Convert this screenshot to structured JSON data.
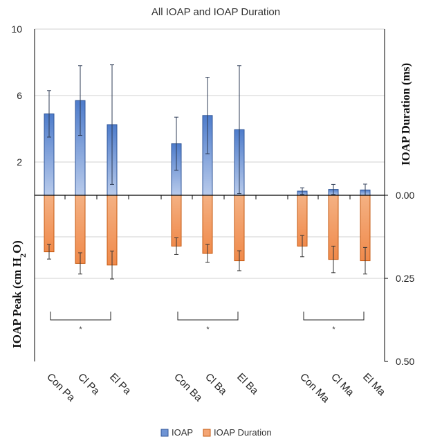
{
  "chart_data": {
    "type": "bar",
    "title": "All IOAP and IOAP Duration",
    "categories": [
      "Con Pa",
      "Cl Pa",
      "El Pa",
      "Con Ba",
      "Cl Ba",
      "El Ba",
      "Con Ma",
      "Cl Ma",
      "El Ma"
    ],
    "left_axis": {
      "label": "IOAP Peak (cm H2O)",
      "label_main": "IOAP Peak (cm H",
      "label_sub": "2",
      "label_end": "O)",
      "ticks": [
        "10",
        "6",
        "2"
      ],
      "ylim": [
        -10,
        10
      ]
    },
    "right_axis": {
      "label": "IOAP Duration (ms)",
      "ticks": [
        "0.00",
        "0.25",
        "0.50"
      ],
      "ylim_inverted": [
        0,
        0.5
      ]
    },
    "series": [
      {
        "name": "IOAP",
        "color": "#4472c4",
        "values": [
          4.9,
          5.7,
          4.25,
          3.1,
          4.8,
          3.95,
          0.25,
          0.35,
          0.32
        ],
        "error": [
          1.4,
          2.1,
          3.6,
          1.6,
          2.3,
          3.85,
          0.2,
          0.3,
          0.35
        ]
      },
      {
        "name": "IOAP Duration",
        "color": "#ed7d31",
        "values": [
          0.17,
          0.205,
          0.21,
          0.153,
          0.175,
          0.197,
          0.153,
          0.193,
          0.197
        ],
        "error": [
          0.022,
          0.032,
          0.042,
          0.025,
          0.027,
          0.03,
          0.032,
          0.04,
          0.04
        ]
      }
    ],
    "significance": [
      {
        "from": 0,
        "to": 2,
        "label": "*"
      },
      {
        "from": 3,
        "to": 5,
        "label": "*"
      },
      {
        "from": 6,
        "to": 8,
        "label": "*"
      }
    ],
    "grid": true,
    "legend_position": "bottom"
  },
  "colors": {
    "blue_fill_top": "#4e7ccb",
    "blue_fill_bottom": "#b9cbeb",
    "blue_stroke": "#2f5597",
    "orange_fill_top": "#f4b183",
    "orange_fill_bottom": "#f08a4b",
    "orange_stroke": "#c55a11",
    "grid": "#d0d0d0",
    "axis": "#000000"
  }
}
